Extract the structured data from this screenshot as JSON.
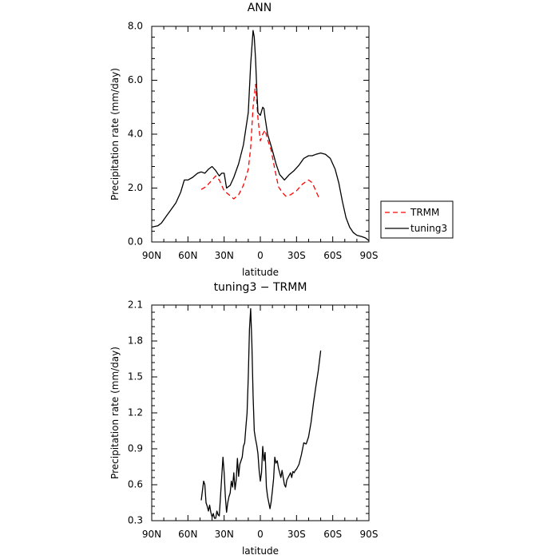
{
  "chart_data": [
    {
      "type": "line",
      "title": "ANN",
      "xlabel": "latitude",
      "ylabel": "Precipitation rate (mm/day)",
      "xlim": [
        90,
        -90
      ],
      "ylim": [
        0,
        8
      ],
      "xticks": [
        90,
        60,
        30,
        0,
        -30,
        -60,
        -90
      ],
      "xtick_labels": [
        "90N",
        "60N",
        "30N",
        "0",
        "30S",
        "60S",
        "90S"
      ],
      "yticks": [
        0,
        2,
        4,
        6,
        8
      ],
      "ytick_labels": [
        "0.0",
        "2.0",
        "4.0",
        "6.0",
        "8.0"
      ],
      "grid": false,
      "legend_position": "right",
      "series": [
        {
          "name": "TRMM",
          "color": "#ff0000",
          "style": "dashed",
          "x": [
            49,
            45,
            40,
            37,
            34,
            30,
            26,
            22,
            18,
            14,
            10,
            8,
            6,
            4,
            2,
            0,
            -2,
            -4,
            -6,
            -9,
            -12,
            -15,
            -18,
            -21,
            -25,
            -30,
            -35,
            -40,
            -43,
            -46,
            -49
          ],
          "y": [
            1.95,
            2.05,
            2.3,
            2.45,
            2.3,
            1.9,
            1.75,
            1.6,
            1.75,
            2.1,
            2.7,
            3.5,
            5.0,
            5.85,
            4.6,
            3.75,
            4.0,
            4.15,
            3.8,
            3.4,
            2.7,
            2.05,
            1.85,
            1.7,
            1.75,
            1.9,
            2.15,
            2.3,
            2.2,
            1.9,
            1.6
          ]
        },
        {
          "name": "tuning3",
          "color": "#000000",
          "style": "solid",
          "x": [
            90,
            85,
            82,
            78,
            74,
            70,
            66,
            63,
            60,
            56,
            52,
            49,
            46,
            43,
            40,
            37,
            34,
            32,
            30,
            28,
            25,
            22,
            18,
            14,
            10,
            8,
            6,
            5,
            4,
            3,
            2,
            0,
            -2,
            -3,
            -4,
            -6,
            -8,
            -10,
            -13,
            -16,
            -20,
            -24,
            -28,
            -32,
            -36,
            -40,
            -43,
            -46,
            -50,
            -54,
            -58,
            -62,
            -65,
            -68,
            -71,
            -74,
            -77,
            -80,
            -84,
            -87,
            -90
          ],
          "y": [
            0.55,
            0.6,
            0.7,
            0.95,
            1.2,
            1.45,
            1.85,
            2.3,
            2.3,
            2.4,
            2.55,
            2.6,
            2.55,
            2.7,
            2.8,
            2.65,
            2.45,
            2.55,
            2.55,
            2.0,
            2.1,
            2.4,
            2.9,
            3.6,
            4.8,
            6.6,
            7.85,
            7.6,
            6.8,
            5.7,
            4.8,
            4.7,
            5.0,
            4.95,
            4.6,
            4.0,
            3.7,
            3.4,
            2.9,
            2.5,
            2.3,
            2.5,
            2.65,
            2.85,
            3.1,
            3.2,
            3.2,
            3.25,
            3.3,
            3.25,
            3.1,
            2.7,
            2.2,
            1.5,
            0.9,
            0.55,
            0.35,
            0.25,
            0.2,
            0.15,
            0.05
          ]
        }
      ]
    },
    {
      "type": "line",
      "title": "tuning3 − TRMM",
      "xlabel": "latitude",
      "ylabel": "Precipitation rate (mm/day)",
      "xlim": [
        90,
        -90
      ],
      "ylim": [
        0.3,
        2.1
      ],
      "xticks": [
        90,
        60,
        30,
        0,
        -30,
        -60,
        -90
      ],
      "xtick_labels": [
        "90N",
        "60N",
        "30N",
        "0",
        "30S",
        "60S",
        "90S"
      ],
      "yticks": [
        0.3,
        0.6,
        0.9,
        1.2,
        1.5,
        1.8,
        2.1
      ],
      "ytick_labels": [
        "0.3",
        "0.6",
        "0.9",
        "1.2",
        "1.5",
        "1.8",
        "2.1"
      ],
      "grid": false,
      "series": [
        {
          "name": "",
          "color": "#000000",
          "style": "solid",
          "x": [
            49,
            47,
            46,
            45,
            44,
            43,
            42,
            41,
            40,
            39,
            38,
            37,
            36,
            35,
            34,
            33,
            32,
            31,
            30,
            29,
            28,
            27,
            26,
            25,
            24,
            23,
            22,
            21,
            20,
            19,
            18,
            17,
            16,
            15,
            14,
            13,
            12,
            11,
            10,
            9,
            8,
            7,
            6,
            5,
            4,
            3,
            2,
            1,
            0,
            -1,
            -2,
            -3,
            -4,
            -5,
            -6,
            -7,
            -8,
            -9,
            -10,
            -11,
            -12,
            -13,
            -14,
            -15,
            -16,
            -17,
            -18,
            -19,
            -20,
            -21,
            -22,
            -23,
            -24,
            -25,
            -26,
            -27,
            -28,
            -29,
            -30,
            -32,
            -34,
            -36,
            -38,
            -40,
            -42,
            -44,
            -46,
            -48,
            -50
          ],
          "y": [
            0.47,
            0.63,
            0.6,
            0.45,
            0.42,
            0.38,
            0.43,
            0.37,
            0.33,
            0.36,
            0.32,
            0.32,
            0.38,
            0.35,
            0.34,
            0.5,
            0.66,
            0.83,
            0.7,
            0.5,
            0.37,
            0.45,
            0.5,
            0.53,
            0.63,
            0.58,
            0.7,
            0.56,
            0.64,
            0.82,
            0.67,
            0.77,
            0.8,
            0.83,
            0.92,
            0.95,
            1.08,
            1.2,
            1.5,
            1.9,
            2.07,
            1.78,
            1.35,
            1.05,
            0.98,
            0.93,
            0.86,
            0.72,
            0.63,
            0.7,
            0.92,
            0.8,
            0.87,
            0.58,
            0.5,
            0.45,
            0.4,
            0.46,
            0.55,
            0.65,
            0.83,
            0.78,
            0.8,
            0.74,
            0.7,
            0.66,
            0.72,
            0.66,
            0.6,
            0.58,
            0.64,
            0.66,
            0.68,
            0.7,
            0.66,
            0.71,
            0.7,
            0.72,
            0.73,
            0.77,
            0.85,
            0.95,
            0.94,
            1.0,
            1.12,
            1.28,
            1.42,
            1.55,
            1.72
          ]
        }
      ]
    }
  ]
}
